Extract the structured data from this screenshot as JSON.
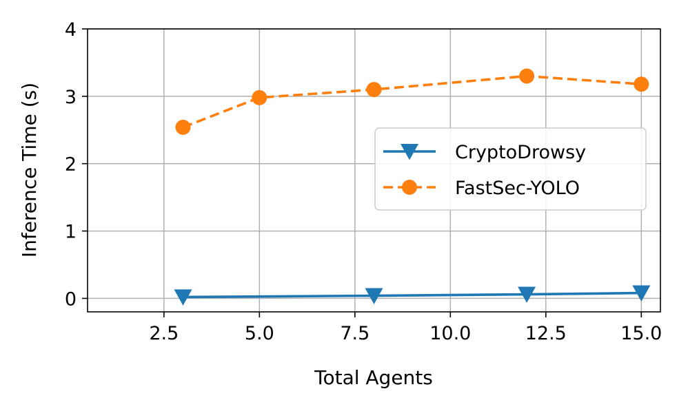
{
  "chart_data": {
    "type": "line",
    "xlabel": "Total Agents",
    "ylabel": "Inference Time (s)",
    "xlim": [
      0.5,
      15.5
    ],
    "ylim": [
      -0.2,
      4.0
    ],
    "x_ticks": [
      2.5,
      5.0,
      7.5,
      10.0,
      12.5,
      15.0
    ],
    "x_tick_labels": [
      "2.5",
      "5.0",
      "7.5",
      "10.0",
      "12.5",
      "15.0"
    ],
    "y_ticks": [
      0,
      1,
      2,
      3,
      4
    ],
    "y_tick_labels": [
      "0",
      "1",
      "2",
      "3",
      "4"
    ],
    "grid": true,
    "legend_position": "center-right",
    "series": [
      {
        "name": "CryptoDrowsy",
        "color": "#1f77b4",
        "marker": "triangle-down",
        "line_style": "solid",
        "x": [
          3,
          8,
          12,
          15
        ],
        "y": [
          0.02,
          0.04,
          0.06,
          0.08
        ]
      },
      {
        "name": "FastSec-YOLO",
        "color": "#ff7f0e",
        "marker": "circle",
        "line_style": "dashed",
        "x": [
          3,
          5,
          8,
          12,
          15
        ],
        "y": [
          2.54,
          2.98,
          3.1,
          3.3,
          3.18
        ]
      }
    ]
  }
}
